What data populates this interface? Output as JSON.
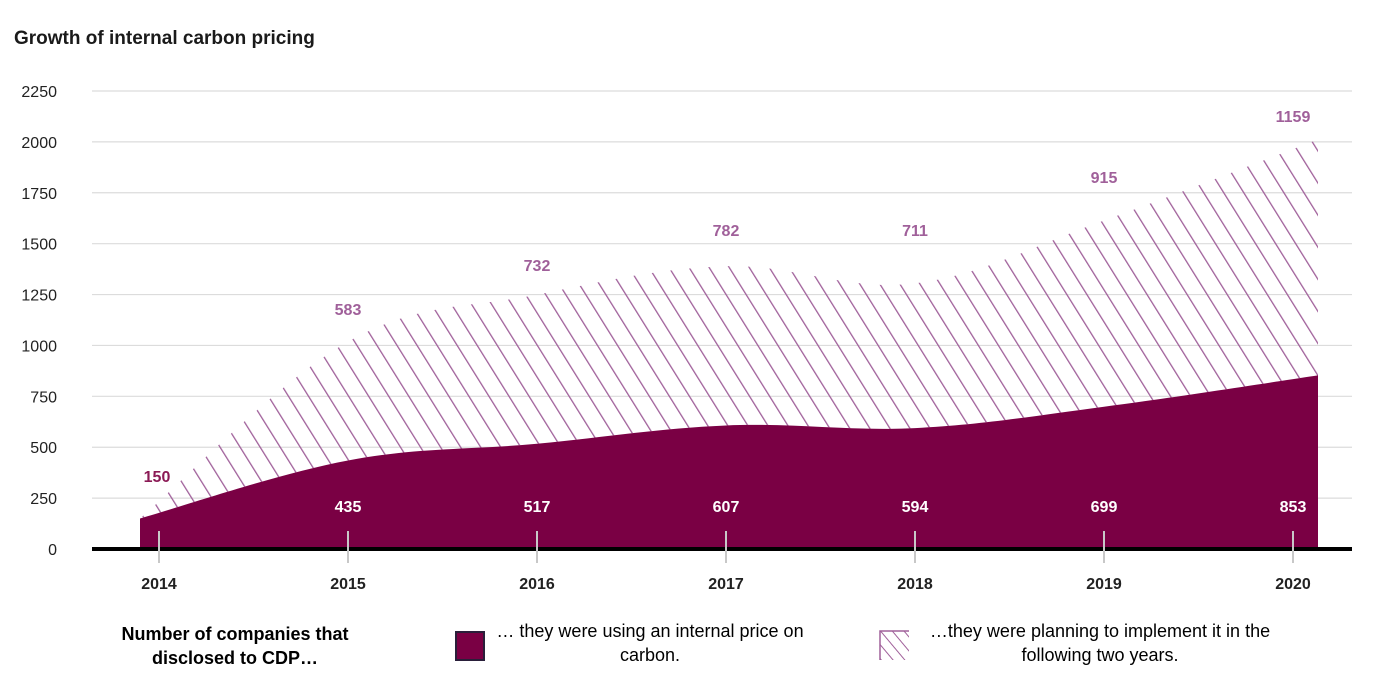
{
  "title": "Growth of internal carbon pricing",
  "chart_data": {
    "type": "area",
    "title": "Growth of internal carbon pricing",
    "categories": [
      "2014",
      "2015",
      "2016",
      "2017",
      "2018",
      "2019",
      "2020"
    ],
    "series": [
      {
        "name": "… they were using an internal price on carbon.",
        "values": [
          150,
          435,
          517,
          607,
          594,
          699,
          853
        ]
      },
      {
        "name": "…they were planning to implement it in the following two years.",
        "values": [
          null,
          583,
          732,
          782,
          711,
          915,
          1159
        ]
      }
    ],
    "yticks": [
      0,
      250,
      500,
      750,
      1000,
      1250,
      1500,
      1750,
      2000,
      2250
    ],
    "ylim": [
      0,
      2250
    ],
    "grid": true,
    "legend_position": "bottom",
    "colors": {
      "using": "#7a0044",
      "planning": "#a0609a",
      "using_label": "#8b1a55"
    }
  },
  "legend": {
    "intro": "Number of companies that disclosed to CDP…",
    "using_label": "… they were using an internal price on carbon.",
    "planning_label": "…they were planning to implement it in the following two years."
  }
}
